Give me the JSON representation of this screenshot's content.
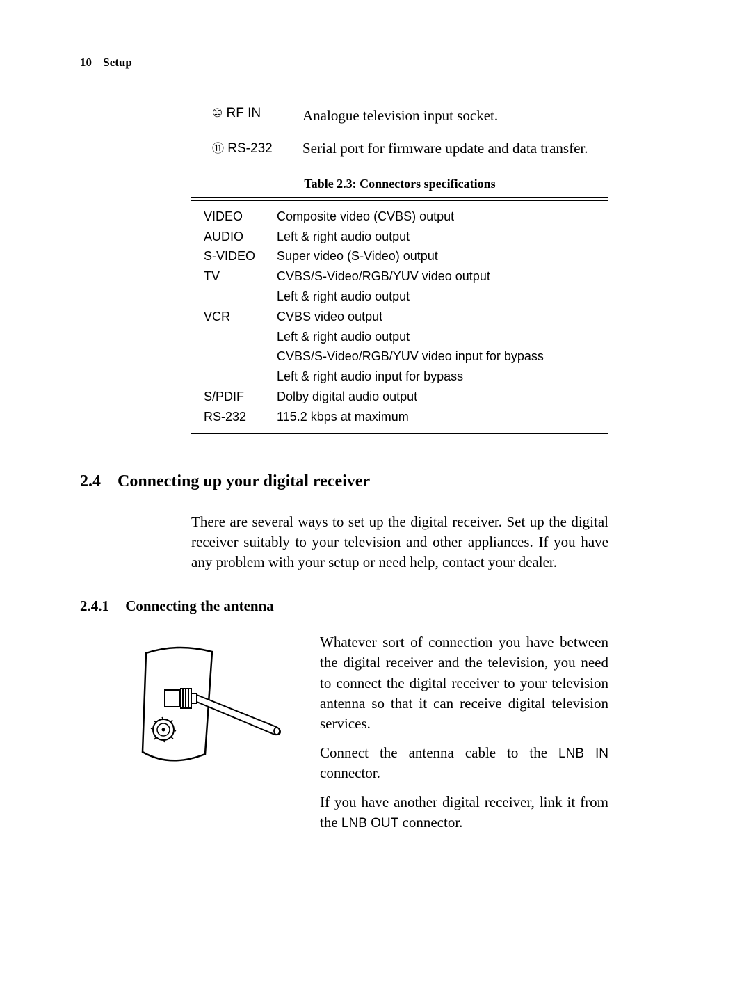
{
  "header": {
    "page_number": "10",
    "chapter": "Setup"
  },
  "definitions": [
    {
      "marker": "⑩",
      "label": "RF IN",
      "desc": "Analogue television input socket."
    },
    {
      "marker": "⑪",
      "label": "RS-232",
      "desc": "Serial port for firmware update and data transfer."
    }
  ],
  "table": {
    "caption": "Table 2.3: Connectors specifications",
    "rows": [
      {
        "col1": "VIDEO",
        "col2": "Composite video (CVBS) output"
      },
      {
        "col1": "AUDIO",
        "col2": "Left & right audio output"
      },
      {
        "col1": "S-VIDEO",
        "col2": "Super video (S-Video) output"
      },
      {
        "col1": "TV",
        "col2": "CVBS/S-Video/RGB/YUV video output"
      },
      {
        "col1": "",
        "col2": "Left & right audio output"
      },
      {
        "col1": "VCR",
        "col2": "CVBS video output"
      },
      {
        "col1": "",
        "col2": "Left & right audio output"
      },
      {
        "col1": "",
        "col2": "CVBS/S-Video/RGB/YUV video input for bypass"
      },
      {
        "col1": "",
        "col2": "Left & right audio input for bypass"
      },
      {
        "col1": "S/PDIF",
        "col2": "Dolby digital audio output"
      },
      {
        "col1": "RS-232",
        "col2": "115.2 kbps at maximum"
      }
    ]
  },
  "section": {
    "num": "2.4",
    "title": "Connecting up your digital receiver",
    "body": "There are several ways to set up the digital receiver. Set up the digital receiver suitably to your television and other appliances. If you have any problem with your setup or need help, contact your dealer."
  },
  "subsection": {
    "num": "2.4.1",
    "title": "Connecting the antenna",
    "para1": "Whatever sort of connection you have between the digital receiver and the television, you need to connect the digital receiver to your television antenna so that it can receive digital television services.",
    "para2_pre": "Connect the antenna cable to the ",
    "para2_label": "LNB IN",
    "para2_post": " connector.",
    "para3_pre": "If you have another digital receiver, link it from the ",
    "para3_label": "LNB OUT",
    "para3_post": " connector."
  }
}
